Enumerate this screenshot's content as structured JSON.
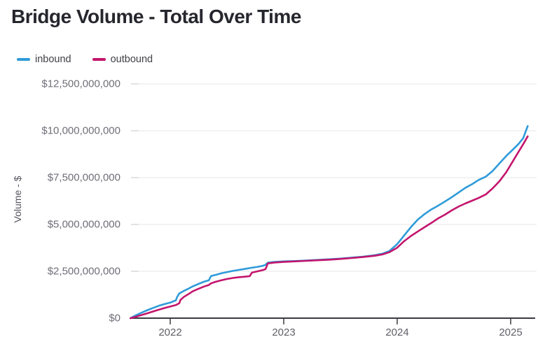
{
  "title": "Bridge Volume - Total Over Time",
  "legend": {
    "items": [
      {
        "label": "inbound",
        "color": "#2f9bd9"
      },
      {
        "label": "outbound",
        "color": "#c3156d"
      }
    ]
  },
  "y_axis": {
    "title": "Volume - $",
    "tick_labels": [
      "$12,500,000,000",
      "$10,000,000,000",
      "$7,500,000,000",
      "$5,000,000,000",
      "$2,500,000,000",
      "$0"
    ],
    "tick_values": [
      12500000000,
      10000000000,
      7500000000,
      5000000000,
      2500000000,
      0
    ]
  },
  "x_axis": {
    "tick_labels": [
      "2022",
      "2023",
      "2024",
      "2025"
    ],
    "tick_values": [
      2022,
      2023,
      2024,
      2025
    ]
  },
  "colors": {
    "grid": "#e7e7ea",
    "grid_tick": "#d6d6db",
    "axis": "#3a3a42",
    "background": "#ffffff"
  },
  "chart_data": {
    "type": "line",
    "title": "Bridge Volume - Total Over Time",
    "xlabel": "",
    "ylabel": "Volume - $",
    "xlim": [
      2021.62,
      2025.25
    ],
    "ylim": [
      0,
      12500000000
    ],
    "grid": "horizontal",
    "legend_position": "top-left",
    "x": [
      2021.65,
      2021.7,
      2021.75,
      2021.8,
      2021.85,
      2021.9,
      2021.95,
      2022.0,
      2022.05,
      2022.06,
      2022.08,
      2022.09,
      2022.12,
      2022.16,
      2022.2,
      2022.25,
      2022.3,
      2022.34,
      2022.36,
      2022.4,
      2022.45,
      2022.5,
      2022.55,
      2022.6,
      2022.65,
      2022.7,
      2022.72,
      2022.77,
      2022.82,
      2022.84,
      2022.86,
      2022.92,
      2023.0,
      2023.1,
      2023.2,
      2023.3,
      2023.4,
      2023.5,
      2023.6,
      2023.7,
      2023.8,
      2023.87,
      2023.93,
      2024.0,
      2024.06,
      2024.12,
      2024.18,
      2024.24,
      2024.3,
      2024.36,
      2024.42,
      2024.48,
      2024.54,
      2024.6,
      2024.66,
      2024.72,
      2024.78,
      2024.84,
      2024.9,
      2024.96,
      2025.02,
      2025.07,
      2025.11,
      2025.15
    ],
    "series": [
      {
        "name": "inbound",
        "color": "#2f9bd9",
        "values": [
          0,
          160000000,
          300000000,
          430000000,
          550000000,
          660000000,
          750000000,
          830000000,
          950000000,
          1120000000,
          1320000000,
          1350000000,
          1450000000,
          1570000000,
          1700000000,
          1830000000,
          1950000000,
          2020000000,
          2250000000,
          2310000000,
          2390000000,
          2460000000,
          2520000000,
          2570000000,
          2620000000,
          2670000000,
          2690000000,
          2740000000,
          2800000000,
          2850000000,
          2960000000,
          3000000000,
          3030000000,
          3050000000,
          3080000000,
          3110000000,
          3140000000,
          3180000000,
          3230000000,
          3280000000,
          3360000000,
          3440000000,
          3580000000,
          3950000000,
          4400000000,
          4850000000,
          5250000000,
          5550000000,
          5800000000,
          6000000000,
          6220000000,
          6450000000,
          6700000000,
          6950000000,
          7150000000,
          7380000000,
          7550000000,
          7850000000,
          8250000000,
          8650000000,
          9000000000,
          9300000000,
          9600000000,
          10250000000
        ]
      },
      {
        "name": "outbound",
        "color": "#c3156d",
        "values": [
          0,
          80000000,
          170000000,
          260000000,
          360000000,
          450000000,
          540000000,
          620000000,
          700000000,
          730000000,
          800000000,
          970000000,
          1130000000,
          1280000000,
          1440000000,
          1570000000,
          1690000000,
          1770000000,
          1860000000,
          1940000000,
          2020000000,
          2090000000,
          2140000000,
          2180000000,
          2210000000,
          2240000000,
          2430000000,
          2500000000,
          2570000000,
          2620000000,
          2920000000,
          2970000000,
          3000000000,
          3030000000,
          3060000000,
          3090000000,
          3120000000,
          3160000000,
          3210000000,
          3260000000,
          3330000000,
          3400000000,
          3520000000,
          3760000000,
          4100000000,
          4380000000,
          4620000000,
          4850000000,
          5080000000,
          5320000000,
          5520000000,
          5750000000,
          5950000000,
          6120000000,
          6270000000,
          6420000000,
          6600000000,
          6920000000,
          7300000000,
          7780000000,
          8380000000,
          8880000000,
          9280000000,
          9700000000
        ]
      }
    ]
  }
}
